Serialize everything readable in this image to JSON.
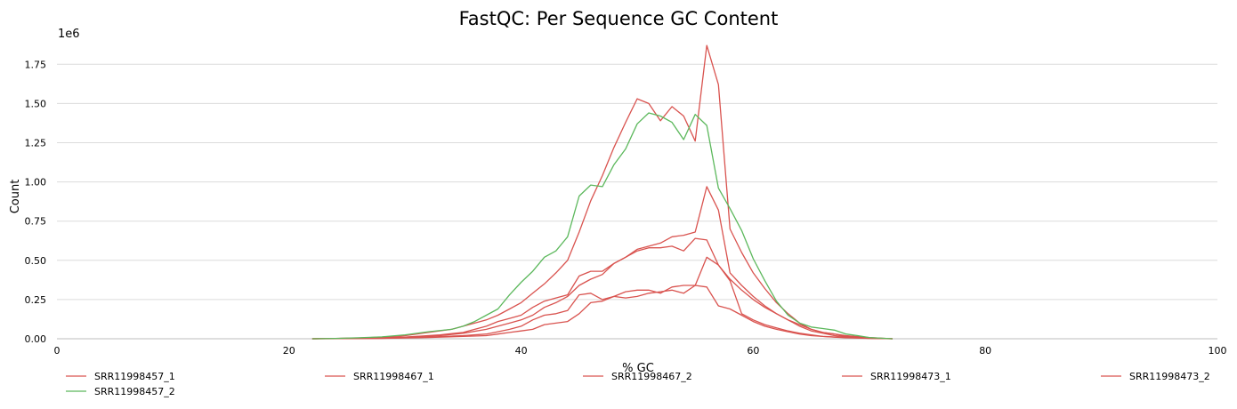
{
  "chart_data": {
    "type": "line",
    "title": "FastQC: Per Sequence GC Content",
    "xlabel": "% GC",
    "ylabel": "Count",
    "y_exponent_label": "1e6",
    "xlim": [
      0,
      100
    ],
    "ylim": [
      0,
      1.95
    ],
    "xticks": [
      0,
      20,
      40,
      60,
      80,
      100
    ],
    "yticks": [
      0.0,
      0.25,
      0.5,
      0.75,
      1.0,
      1.25,
      1.5,
      1.75
    ],
    "xtick_labels": [
      "0",
      "20",
      "40",
      "60",
      "80",
      "100"
    ],
    "ytick_labels": [
      "0.00",
      "0.25",
      "0.50",
      "0.75",
      "1.00",
      "1.25",
      "1.50",
      "1.75"
    ],
    "grid": "horizontal",
    "legend_position": "bottom",
    "series": [
      {
        "name": "SRR11998457_1",
        "color": "#d9534f",
        "x": [
          22,
          24,
          26,
          28,
          30,
          32,
          34,
          35,
          36,
          37,
          38,
          39,
          40,
          41,
          42,
          43,
          44,
          45,
          46,
          47,
          48,
          49,
          50,
          51,
          52,
          53,
          54,
          55,
          56,
          57,
          58,
          59,
          60,
          61,
          62,
          63,
          64,
          65,
          66,
          67,
          68,
          69,
          70,
          72
        ],
        "y": [
          0,
          0.002,
          0.005,
          0.01,
          0.02,
          0.04,
          0.06,
          0.08,
          0.1,
          0.12,
          0.15,
          0.19,
          0.23,
          0.29,
          0.35,
          0.42,
          0.5,
          0.68,
          0.88,
          1.04,
          1.22,
          1.38,
          1.53,
          1.5,
          1.39,
          1.48,
          1.42,
          1.26,
          1.87,
          1.62,
          0.7,
          0.55,
          0.42,
          0.32,
          0.23,
          0.16,
          0.1,
          0.06,
          0.04,
          0.03,
          0.015,
          0.008,
          0.004,
          0
        ]
      },
      {
        "name": "SRR11998467_1",
        "color": "#d9534f",
        "x": [
          22,
          26,
          30,
          33,
          35,
          37,
          38,
          39,
          40,
          41,
          42,
          43,
          44,
          45,
          46,
          47,
          48,
          49,
          50,
          51,
          52,
          53,
          54,
          55,
          56,
          57,
          58,
          59,
          60,
          61,
          62,
          63,
          64,
          65,
          66,
          67,
          68,
          70,
          72
        ],
        "y": [
          0,
          0.003,
          0.01,
          0.02,
          0.035,
          0.06,
          0.08,
          0.1,
          0.12,
          0.15,
          0.2,
          0.23,
          0.27,
          0.34,
          0.38,
          0.41,
          0.48,
          0.52,
          0.56,
          0.58,
          0.58,
          0.59,
          0.56,
          0.64,
          0.63,
          0.47,
          0.38,
          0.31,
          0.25,
          0.2,
          0.16,
          0.12,
          0.09,
          0.06,
          0.04,
          0.03,
          0.02,
          0.008,
          0
        ]
      },
      {
        "name": "SRR11998467_2",
        "color": "#d9534f",
        "x": [
          22,
          26,
          30,
          33,
          35,
          36,
          37,
          38,
          39,
          40,
          41,
          42,
          43,
          44,
          45,
          46,
          47,
          48,
          49,
          50,
          51,
          52,
          53,
          54,
          55,
          56,
          57,
          58,
          59,
          60,
          61,
          62,
          63,
          64,
          65,
          66,
          67,
          68,
          70,
          72
        ],
        "y": [
          0,
          0.003,
          0.01,
          0.025,
          0.04,
          0.06,
          0.08,
          0.11,
          0.13,
          0.15,
          0.2,
          0.24,
          0.26,
          0.28,
          0.4,
          0.43,
          0.43,
          0.48,
          0.52,
          0.57,
          0.59,
          0.61,
          0.65,
          0.66,
          0.68,
          0.97,
          0.82,
          0.42,
          0.34,
          0.27,
          0.21,
          0.16,
          0.12,
          0.08,
          0.05,
          0.035,
          0.02,
          0.012,
          0.005,
          0
        ]
      },
      {
        "name": "SRR11998473_1",
        "color": "#d9534f",
        "x": [
          22,
          28,
          32,
          35,
          37,
          38,
          39,
          40,
          41,
          42,
          43,
          44,
          45,
          46,
          47,
          48,
          49,
          50,
          51,
          52,
          53,
          54,
          55,
          56,
          57,
          58,
          59,
          60,
          61,
          62,
          63,
          64,
          65,
          66,
          67,
          68,
          70,
          72
        ],
        "y": [
          0,
          0.003,
          0.01,
          0.02,
          0.03,
          0.045,
          0.06,
          0.08,
          0.12,
          0.15,
          0.16,
          0.18,
          0.28,
          0.29,
          0.25,
          0.27,
          0.3,
          0.31,
          0.31,
          0.29,
          0.33,
          0.34,
          0.34,
          0.52,
          0.47,
          0.37,
          0.16,
          0.12,
          0.09,
          0.07,
          0.05,
          0.035,
          0.025,
          0.015,
          0.01,
          0.006,
          0.002,
          0
        ]
      },
      {
        "name": "SRR11998473_2",
        "color": "#d9534f",
        "x": [
          22,
          28,
          32,
          35,
          37,
          38,
          39,
          40,
          41,
          42,
          43,
          44,
          45,
          46,
          47,
          48,
          49,
          50,
          51,
          52,
          53,
          54,
          55,
          56,
          57,
          58,
          59,
          60,
          61,
          62,
          63,
          64,
          65,
          66,
          68,
          70,
          72
        ],
        "y": [
          0,
          0.002,
          0.008,
          0.015,
          0.02,
          0.03,
          0.04,
          0.05,
          0.06,
          0.09,
          0.1,
          0.11,
          0.16,
          0.23,
          0.24,
          0.27,
          0.26,
          0.27,
          0.29,
          0.3,
          0.31,
          0.29,
          0.34,
          0.33,
          0.21,
          0.19,
          0.15,
          0.11,
          0.08,
          0.06,
          0.045,
          0.03,
          0.02,
          0.015,
          0.008,
          0.003,
          0
        ]
      },
      {
        "name": "SRR11998457_2",
        "color": "#5cb85c",
        "x": [
          22,
          24,
          26,
          28,
          30,
          32,
          34,
          35,
          36,
          37,
          38,
          39,
          40,
          41,
          42,
          43,
          44,
          45,
          46,
          47,
          48,
          49,
          50,
          51,
          52,
          53,
          54,
          55,
          56,
          57,
          58,
          59,
          60,
          61,
          62,
          63,
          64,
          65,
          66,
          67,
          68,
          69,
          70,
          72
        ],
        "y": [
          0,
          0.002,
          0.006,
          0.012,
          0.025,
          0.045,
          0.06,
          0.08,
          0.11,
          0.15,
          0.19,
          0.28,
          0.36,
          0.43,
          0.52,
          0.56,
          0.65,
          0.91,
          0.98,
          0.97,
          1.11,
          1.21,
          1.37,
          1.44,
          1.42,
          1.38,
          1.27,
          1.43,
          1.36,
          0.96,
          0.83,
          0.69,
          0.51,
          0.37,
          0.24,
          0.15,
          0.1,
          0.075,
          0.065,
          0.055,
          0.03,
          0.02,
          0.008,
          0
        ]
      }
    ]
  }
}
